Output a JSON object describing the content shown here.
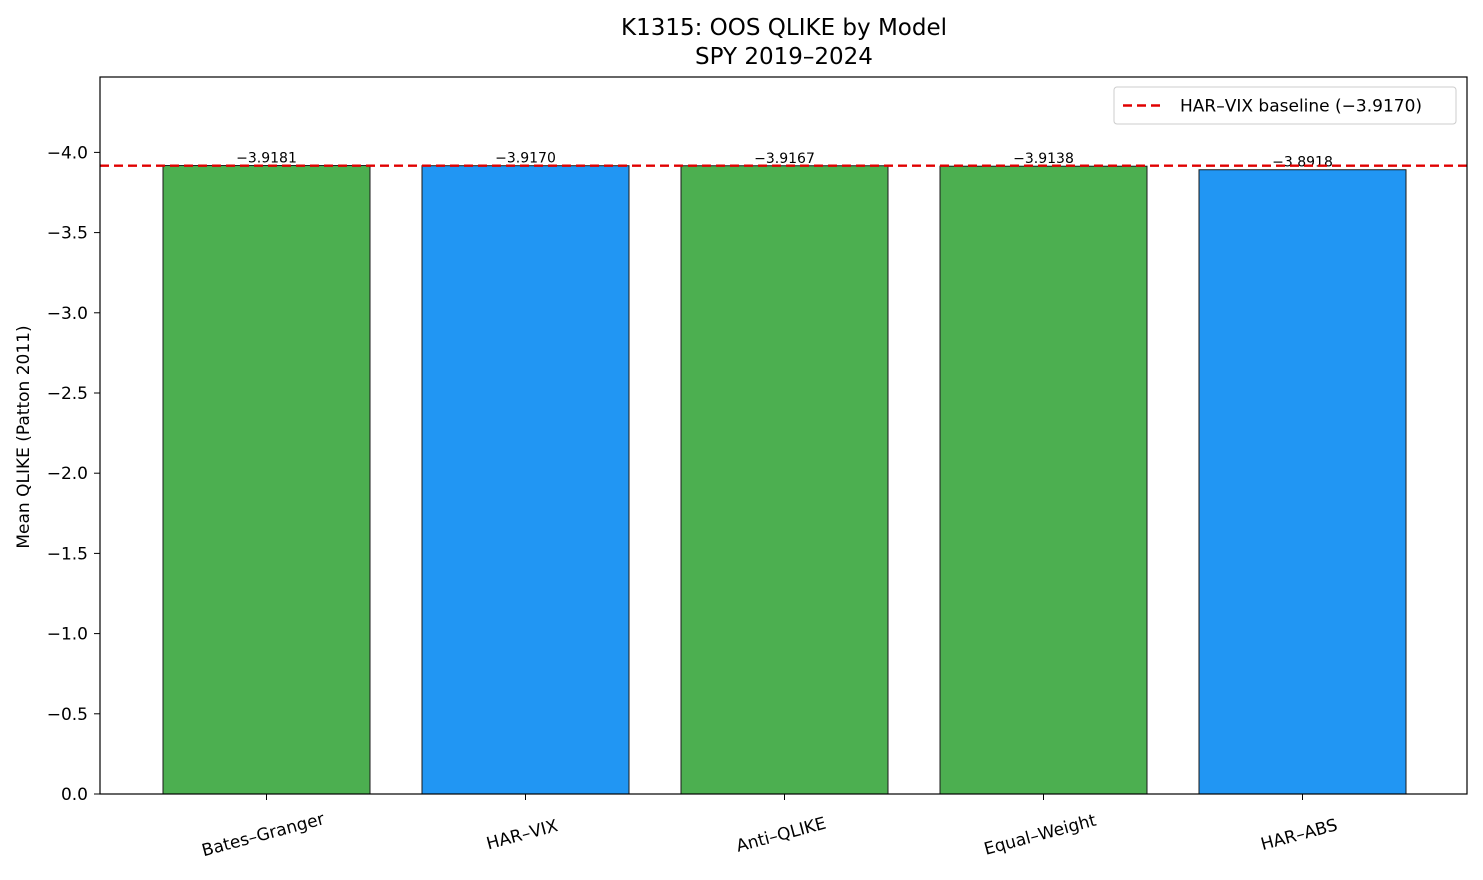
{
  "chart_data": {
    "type": "bar",
    "title": "K1315: OOS QLIKE by Model",
    "subtitle": "SPY 2019–2024",
    "xlabel": "",
    "ylabel": "Mean QLIKE (Patton 2011)",
    "categories": [
      "Bates–Granger",
      "HAR–VIX",
      "Anti–QLIKE",
      "Equal–Weight",
      "HAR–ABS"
    ],
    "values": [
      -3.9181,
      -3.917,
      -3.9167,
      -3.9138,
      -3.8918
    ],
    "value_labels": [
      "−3.9181",
      "−3.9170",
      "−3.9167",
      "−3.9138",
      "−3.8918"
    ],
    "bar_colors": [
      "#4caf50",
      "#2196f3",
      "#4caf50",
      "#4caf50",
      "#2196f3"
    ],
    "inverted_y_axis": true,
    "ylim": [
      0.0,
      -4.47
    ],
    "yticks": [
      0.0,
      -0.5,
      -1.0,
      -1.5,
      -2.0,
      -2.5,
      -3.0,
      -3.5,
      -4.0
    ],
    "ytick_labels": [
      "0.0",
      "−0.5",
      "−1.0",
      "−1.5",
      "−2.0",
      "−2.5",
      "−3.0",
      "−3.5",
      "−4.0"
    ],
    "grid": false,
    "baseline": {
      "value": -3.917,
      "label": "HAR–VIX baseline (−3.9170)",
      "color": "#e00000",
      "style": "dashed"
    },
    "legend_position": "top-right"
  }
}
